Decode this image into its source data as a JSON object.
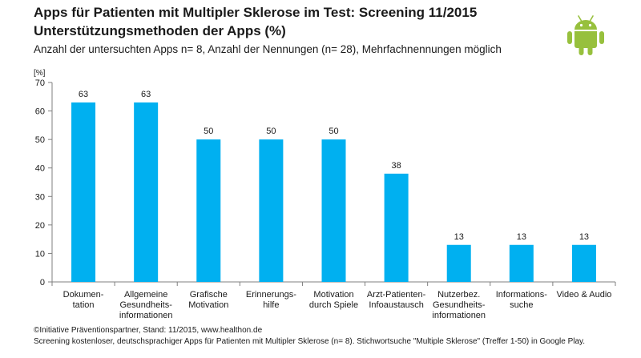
{
  "title_line1": "Apps für Patienten mit Multipler Sklerose im Test: Screening 11/2015",
  "title_line2": "Unterstützungsmethoden der Apps (%)",
  "subtitle": "Anzahl der untersuchten Apps n= 8, Anzahl der Nennungen (n= 28), Mehrfachnennungen möglich",
  "footer_line1": "©Initiative Präventionspartner, Stand: 11/2015, www.healthon.de",
  "footer_line2": "Screening kostenloser, deutschsprachiger Apps für Patienten mit Multipler Sklerose (n= 8). Stichwortsuche \"Multiple Sklerose\" (Treffer 1-50) in Google Play.",
  "logo_icon": "android-robot-icon",
  "colors": {
    "bar": "#00B0F0",
    "logo": "#97C03D",
    "axis": "#7f7f7f"
  },
  "chart_data": {
    "type": "bar",
    "ylabel": "[%]",
    "ylim": [
      0,
      70
    ],
    "yticks": [
      0,
      10,
      20,
      30,
      40,
      50,
      60,
      70
    ],
    "grid": false,
    "categories": [
      [
        "Dokumen-",
        "tation"
      ],
      [
        "Allgemeine",
        "Gesundheits-",
        "informationen"
      ],
      [
        "Grafische",
        "Motivation"
      ],
      [
        "Erinnerungs-",
        "hilfe"
      ],
      [
        "Motivation",
        "durch Spiele"
      ],
      [
        "Arzt-Patienten-",
        "Infoaustausch"
      ],
      [
        "Nutzerbez.",
        "Gesundheits-",
        "informationen"
      ],
      [
        "Informations-",
        "suche"
      ],
      [
        "Video & Audio"
      ]
    ],
    "values": [
      63,
      63,
      50,
      50,
      50,
      38,
      13,
      13,
      13
    ],
    "data_labels": [
      "63",
      "63",
      "50",
      "50",
      "50",
      "38",
      "13",
      "13",
      "13"
    ]
  }
}
